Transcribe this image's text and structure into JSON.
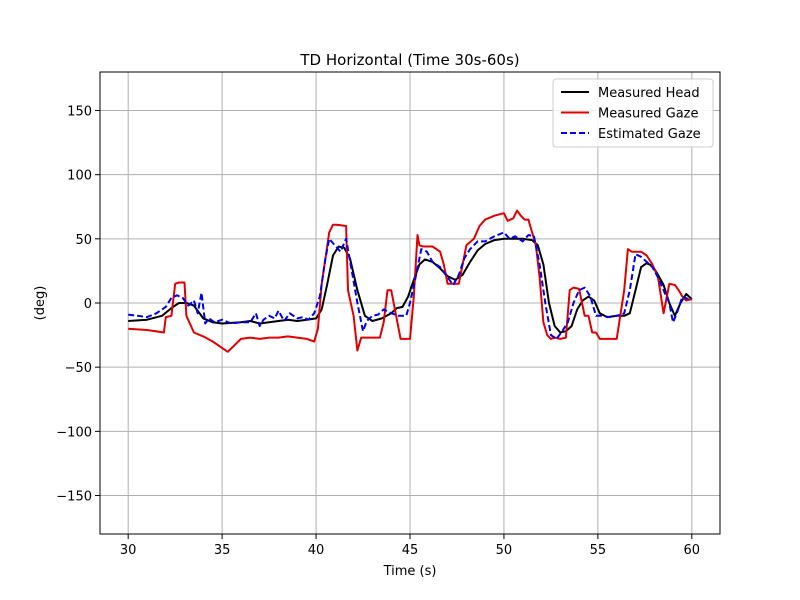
{
  "chart_data": {
    "type": "line",
    "title": "TD Horizontal (Time 30s-60s)",
    "xlabel": "Time (s)",
    "ylabel": "(deg)",
    "xlim": [
      28.5,
      61.5
    ],
    "ylim": [
      -180,
      180
    ],
    "xticks": [
      30,
      35,
      40,
      45,
      50,
      55,
      60
    ],
    "yticks": [
      -150,
      -100,
      -50,
      0,
      50,
      100,
      150
    ],
    "grid": true,
    "legend": "top-right",
    "series": [
      {
        "name": "Measured Head",
        "color": "#000000",
        "style": "solid",
        "x": [
          30,
          31,
          31.8,
          32.3,
          32.7,
          33.1,
          33.5,
          34,
          34.5,
          35,
          36,
          36.5,
          37,
          37.5,
          38,
          38.5,
          39,
          39.5,
          40,
          40.3,
          40.6,
          40.9,
          41.2,
          41.5,
          41.8,
          42.2,
          42.6,
          43,
          43.5,
          44,
          44.3,
          44.6,
          44.9,
          45.2,
          45.5,
          45.8,
          46.2,
          46.6,
          47,
          47.4,
          47.8,
          48.2,
          48.6,
          49,
          49.5,
          50,
          50.5,
          51,
          51.5,
          51.8,
          52.1,
          52.4,
          52.7,
          53,
          53.3,
          53.6,
          53.9,
          54.2,
          54.5,
          54.8,
          55.1,
          55.5,
          56,
          56.4,
          56.7,
          57,
          57.3,
          57.6,
          57.9,
          58.2,
          58.5,
          58.8,
          59.1,
          59.4,
          59.7,
          60
        ],
        "y": [
          -14,
          -13,
          -10,
          -4,
          0,
          0,
          -2,
          -12,
          -15,
          -16,
          -15,
          -14,
          -16,
          -15,
          -14,
          -13,
          -14,
          -13,
          -12,
          -5,
          15,
          37,
          44,
          43,
          35,
          10,
          -10,
          -14,
          -12,
          -8,
          -4,
          -3,
          5,
          18,
          30,
          34,
          32,
          27,
          21,
          18,
          22,
          32,
          41,
          46,
          49,
          50,
          50,
          50,
          49,
          45,
          30,
          0,
          -18,
          -23,
          -22,
          -18,
          -5,
          2,
          5,
          2,
          -8,
          -11,
          -10,
          -10,
          -8,
          10,
          28,
          31,
          29,
          22,
          14,
          0,
          -10,
          0,
          7,
          3
        ]
      },
      {
        "name": "Measured Gaze",
        "color": "#e00000",
        "style": "solid",
        "x": [
          30,
          31,
          31.9,
          32,
          32.3,
          32.5,
          32.7,
          33.0,
          33.1,
          33.5,
          34,
          34.5,
          35,
          35.3,
          36,
          36.5,
          37,
          37.5,
          38,
          38.5,
          39,
          39.5,
          39.9,
          40.1,
          40.3,
          40.5,
          40.7,
          40.9,
          41.1,
          41.6,
          41.7,
          42,
          42.2,
          42.4,
          42.6,
          43,
          43.4,
          43.6,
          43.8,
          44,
          44.5,
          44.8,
          45.0,
          45.2,
          45.4,
          45.5,
          45.7,
          46.2,
          46.6,
          46.8,
          47.0,
          47.4,
          47.6,
          48.0,
          48.4,
          48.7,
          49,
          49.5,
          50,
          50.2,
          50.5,
          50.7,
          50.9,
          51.1,
          51.3,
          51.5,
          51.7,
          51.9,
          52.1,
          52.3,
          52.5,
          52.7,
          53,
          53.3,
          53.5,
          53.7,
          54,
          54.3,
          54.5,
          54.7,
          54.9,
          55.1,
          55.5,
          56,
          56.4,
          56.6,
          56.8,
          57.0,
          57.3,
          57.6,
          57.9,
          58.2,
          58.5,
          58.8,
          59.1,
          59.3,
          59.5,
          59.7,
          60
        ],
        "y": [
          -20,
          -21,
          -23,
          -11,
          -10,
          15,
          16,
          16,
          -10,
          -23,
          -26,
          -30,
          -35,
          -38,
          -28,
          -27,
          -28,
          -27,
          -27,
          -26,
          -27,
          -28,
          -30,
          -20,
          15,
          35,
          55,
          61,
          61,
          60,
          10,
          -10,
          -37,
          -27,
          -27,
          -27,
          -27,
          -15,
          10,
          10,
          -28,
          -28,
          -28,
          5,
          53,
          45,
          44,
          44,
          40,
          30,
          15,
          15,
          15,
          45,
          50,
          60,
          65,
          68,
          70,
          64,
          66,
          72,
          68,
          65,
          65,
          55,
          45,
          20,
          -15,
          -25,
          -28,
          -27,
          -28,
          -27,
          10,
          12,
          11,
          -10,
          -10,
          -23,
          -23,
          -28,
          -28,
          -28,
          10,
          42,
          40,
          40,
          40,
          37,
          30,
          20,
          -8,
          15,
          14,
          10,
          5,
          2,
          3
        ]
      },
      {
        "name": "Estimated Gaze",
        "color": "#0000ee",
        "style": "dashed",
        "x": [
          30,
          30.5,
          31,
          31.5,
          32,
          32.3,
          32.6,
          32.9,
          33.2,
          33.5,
          33.7,
          33.9,
          34.1,
          34.3,
          34.6,
          35,
          35.5,
          36,
          36.5,
          36.8,
          37,
          37.2,
          37.5,
          37.8,
          38,
          38.3,
          38.6,
          39,
          39.3,
          39.6,
          39.9,
          40.2,
          40.5,
          40.7,
          41.0,
          41.3,
          41.6,
          41.9,
          42.2,
          42.5,
          42.7,
          43,
          43.3,
          43.6,
          44,
          44.4,
          44.8,
          45.0,
          45.3,
          45.6,
          45.9,
          46.2,
          46.6,
          47,
          47.3,
          47.6,
          47.9,
          48.2,
          48.6,
          49,
          49.5,
          50,
          50.3,
          50.6,
          51,
          51.3,
          51.6,
          51.9,
          52.2,
          52.5,
          52.8,
          53.1,
          53.4,
          53.7,
          54,
          54.3,
          54.6,
          54.9,
          55.2,
          55.6,
          56,
          56.4,
          56.7,
          57.0,
          57.3,
          57.6,
          57.9,
          58.2,
          58.5,
          58.8,
          59.0,
          59.2,
          59.5,
          59.8,
          60
        ],
        "y": [
          -9,
          -10,
          -11,
          -8,
          -3,
          4,
          6,
          4,
          -2,
          2,
          -8,
          8,
          -16,
          -12,
          -15,
          -13,
          -16,
          -15,
          -15,
          -8,
          -18,
          -13,
          -10,
          -12,
          -6,
          -14,
          -8,
          -12,
          -11,
          -13,
          -8,
          5,
          35,
          50,
          45,
          40,
          50,
          25,
          0,
          -22,
          -14,
          -10,
          -9,
          -5,
          -8,
          -10,
          -10,
          0,
          20,
          42,
          40,
          32,
          28,
          20,
          14,
          22,
          35,
          42,
          48,
          48,
          52,
          55,
          50,
          52,
          48,
          53,
          52,
          30,
          0,
          -25,
          -28,
          -22,
          -15,
          0,
          10,
          12,
          5,
          -10,
          -10,
          -11,
          -10,
          -8,
          10,
          38,
          36,
          32,
          28,
          20,
          10,
          0,
          -15,
          -8,
          5,
          3,
          3
        ]
      }
    ]
  }
}
